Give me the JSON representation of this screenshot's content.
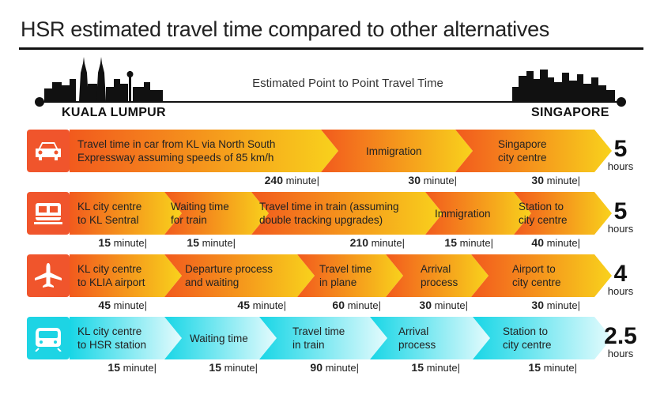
{
  "title": "HSR estimated travel time compared to other alternatives",
  "subtitle": "Estimated Point to Point Travel Time",
  "origin": "KUALA LUMPUR",
  "destination": "SINGAPORE",
  "colors": {
    "orange_start": "#F25A1D",
    "orange_end": "#F8D21C",
    "cyan_start": "#18D6E6",
    "cyan_end": "#E4FBFD",
    "icon_orange": "#F0552C",
    "icon_cyan": "#1DD4E4"
  },
  "rows": [
    {
      "mode": "car",
      "icon": "car-icon",
      "segments": [
        {
          "label": "Travel time in car from KL via North South\nExpressway assuming speeds of 85 km/h",
          "minutes": "240"
        },
        {
          "label": "Immigration",
          "minutes": "30"
        },
        {
          "label": "Singapore\ncity centre",
          "minutes": "30"
        }
      ],
      "total": "5",
      "unit": "hours"
    },
    {
      "mode": "train",
      "icon": "train-icon",
      "segments": [
        {
          "label": "KL city centre\nto KL Sentral",
          "minutes": "15"
        },
        {
          "label": "Waiting time\nfor train",
          "minutes": "15"
        },
        {
          "label": "Travel time in train (assuming\ndouble tracking upgrades)",
          "minutes": "210"
        },
        {
          "label": "Immigration",
          "minutes": "15"
        },
        {
          "label": "Station to\ncity centre",
          "minutes": "40"
        }
      ],
      "total": "5",
      "unit": "hours"
    },
    {
      "mode": "plane",
      "icon": "airplane-icon",
      "segments": [
        {
          "label": "KL city centre\nto KLIA airport",
          "minutes": "45"
        },
        {
          "label": "Departure process\nand waiting",
          "minutes": "45"
        },
        {
          "label": "Travel time\nin plane",
          "minutes": "60"
        },
        {
          "label": "Arrival\nprocess",
          "minutes": "30"
        },
        {
          "label": "Airport to\ncity centre",
          "minutes": "30"
        }
      ],
      "total": "4",
      "unit": "hours"
    },
    {
      "mode": "hsr",
      "icon": "high-speed-train-icon",
      "segments": [
        {
          "label": "KL city centre\nto HSR station",
          "minutes": "15"
        },
        {
          "label": "Waiting time",
          "minutes": "15"
        },
        {
          "label": "Travel time\nin train",
          "minutes": "90"
        },
        {
          "label": "Arrival\nprocess",
          "minutes": "15"
        },
        {
          "label": "Station to\ncity centre",
          "minutes": "15"
        }
      ],
      "total": "2.5",
      "unit": "hours"
    }
  ],
  "minute_word": "minute"
}
